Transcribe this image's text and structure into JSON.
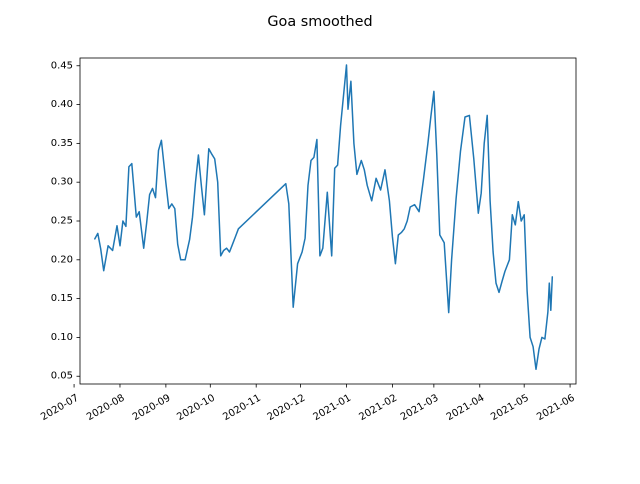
{
  "chart_data": {
    "type": "line",
    "title": "Goa smoothed",
    "xlabel": "",
    "ylabel": "",
    "x_range": [
      "2020-07-05",
      "2021-06-05"
    ],
    "ylim": [
      0.04,
      0.46
    ],
    "y_ticks": [
      0.05,
      0.1,
      0.15,
      0.2,
      0.25,
      0.3,
      0.35,
      0.4,
      0.45
    ],
    "y_tick_labels": [
      "0.05",
      "0.10",
      "0.15",
      "0.20",
      "0.25",
      "0.30",
      "0.35",
      "0.40",
      "0.45"
    ],
    "x_ticks": [
      "2020-07-01",
      "2020-08-01",
      "2020-09-01",
      "2020-10-01",
      "2020-11-01",
      "2020-12-01",
      "2021-01-01",
      "2021-02-01",
      "2021-03-01",
      "2021-04-01",
      "2021-05-01",
      "2021-06-01"
    ],
    "x_tick_labels": [
      "2020-07",
      "2020-08",
      "2020-09",
      "2020-10",
      "2020-11",
      "2020-12",
      "2021-01",
      "2021-02",
      "2021-03",
      "2021-04",
      "2021-05",
      "2021-06"
    ],
    "grid": false,
    "line_color": "#1f77b4",
    "series": [
      {
        "x": [
          "2020-07-15",
          "2020-07-17",
          "2020-07-19",
          "2020-07-21",
          "2020-07-24",
          "2020-07-27",
          "2020-07-30",
          "2020-08-01",
          "2020-08-03",
          "2020-08-05",
          "2020-08-07",
          "2020-08-09",
          "2020-08-12",
          "2020-08-14",
          "2020-08-17",
          "2020-08-19",
          "2020-08-21",
          "2020-08-23",
          "2020-08-25",
          "2020-08-27",
          "2020-08-29",
          "2020-09-01",
          "2020-09-03",
          "2020-09-05",
          "2020-09-07",
          "2020-09-09",
          "2020-09-11",
          "2020-09-14",
          "2020-09-17",
          "2020-09-19",
          "2020-09-21",
          "2020-09-23",
          "2020-09-25",
          "2020-09-27",
          "2020-09-30",
          "2020-10-02",
          "2020-10-04",
          "2020-10-06",
          "2020-10-08",
          "2020-10-10",
          "2020-10-12",
          "2020-10-14",
          "2020-10-16",
          "2020-10-18",
          "2020-10-20",
          "2020-11-21",
          "2020-11-23",
          "2020-11-26",
          "2020-11-29",
          "2020-12-02",
          "2020-12-04",
          "2020-12-06",
          "2020-12-08",
          "2020-12-10",
          "2020-12-12",
          "2020-12-14",
          "2020-12-16",
          "2020-12-19",
          "2020-12-22",
          "2020-12-24",
          "2020-12-26",
          "2020-12-28",
          "2021-01-01",
          "2021-01-02",
          "2021-01-04",
          "2021-01-06",
          "2021-01-08",
          "2021-01-11",
          "2021-01-13",
          "2021-01-15",
          "2021-01-18",
          "2021-01-21",
          "2021-01-24",
          "2021-01-27",
          "2021-01-30",
          "2021-02-01",
          "2021-02-03",
          "2021-02-05",
          "2021-02-07",
          "2021-02-09",
          "2021-02-11",
          "2021-02-13",
          "2021-02-16",
          "2021-02-19",
          "2021-02-22",
          "2021-02-25",
          "2021-02-27",
          "2021-03-01",
          "2021-03-03",
          "2021-03-05",
          "2021-03-08",
          "2021-03-11",
          "2021-03-13",
          "2021-03-16",
          "2021-03-19",
          "2021-03-22",
          "2021-03-25",
          "2021-03-28",
          "2021-03-31",
          "2021-04-02",
          "2021-04-04",
          "2021-04-06",
          "2021-04-08",
          "2021-04-10",
          "2021-04-12",
          "2021-04-14",
          "2021-04-16",
          "2021-04-18",
          "2021-04-21",
          "2021-04-23",
          "2021-04-25",
          "2021-04-27",
          "2021-04-29",
          "2021-05-01",
          "2021-05-03",
          "2021-05-05",
          "2021-05-07",
          "2021-05-09",
          "2021-05-11",
          "2021-05-13",
          "2021-05-15",
          "2021-05-17",
          "2021-05-18",
          "2021-05-19",
          "2021-05-20"
        ],
        "y": [
          0.227,
          0.234,
          0.214,
          0.186,
          0.218,
          0.212,
          0.244,
          0.218,
          0.25,
          0.243,
          0.32,
          0.324,
          0.255,
          0.262,
          0.215,
          0.247,
          0.284,
          0.292,
          0.28,
          0.341,
          0.354,
          0.299,
          0.266,
          0.272,
          0.266,
          0.22,
          0.2,
          0.2,
          0.226,
          0.255,
          0.3,
          0.335,
          0.295,
          0.258,
          0.343,
          0.336,
          0.33,
          0.3,
          0.205,
          0.212,
          0.215,
          0.21,
          0.22,
          0.23,
          0.24,
          0.298,
          0.272,
          0.139,
          0.195,
          0.21,
          0.228,
          0.296,
          0.328,
          0.332,
          0.355,
          0.205,
          0.215,
          0.287,
          0.205,
          0.318,
          0.322,
          0.373,
          0.451,
          0.394,
          0.43,
          0.35,
          0.31,
          0.328,
          0.316,
          0.296,
          0.276,
          0.305,
          0.29,
          0.316,
          0.276,
          0.23,
          0.195,
          0.232,
          0.235,
          0.24,
          0.25,
          0.268,
          0.271,
          0.262,
          0.304,
          0.35,
          0.385,
          0.417,
          0.335,
          0.232,
          0.222,
          0.132,
          0.2,
          0.279,
          0.34,
          0.384,
          0.386,
          0.33,
          0.26,
          0.286,
          0.35,
          0.386,
          0.276,
          0.21,
          0.17,
          0.158,
          0.172,
          0.185,
          0.2,
          0.258,
          0.245,
          0.275,
          0.25,
          0.258,
          0.16,
          0.1,
          0.088,
          0.059,
          0.085,
          0.1,
          0.098,
          0.133,
          0.17,
          0.135,
          0.178
        ]
      }
    ]
  }
}
